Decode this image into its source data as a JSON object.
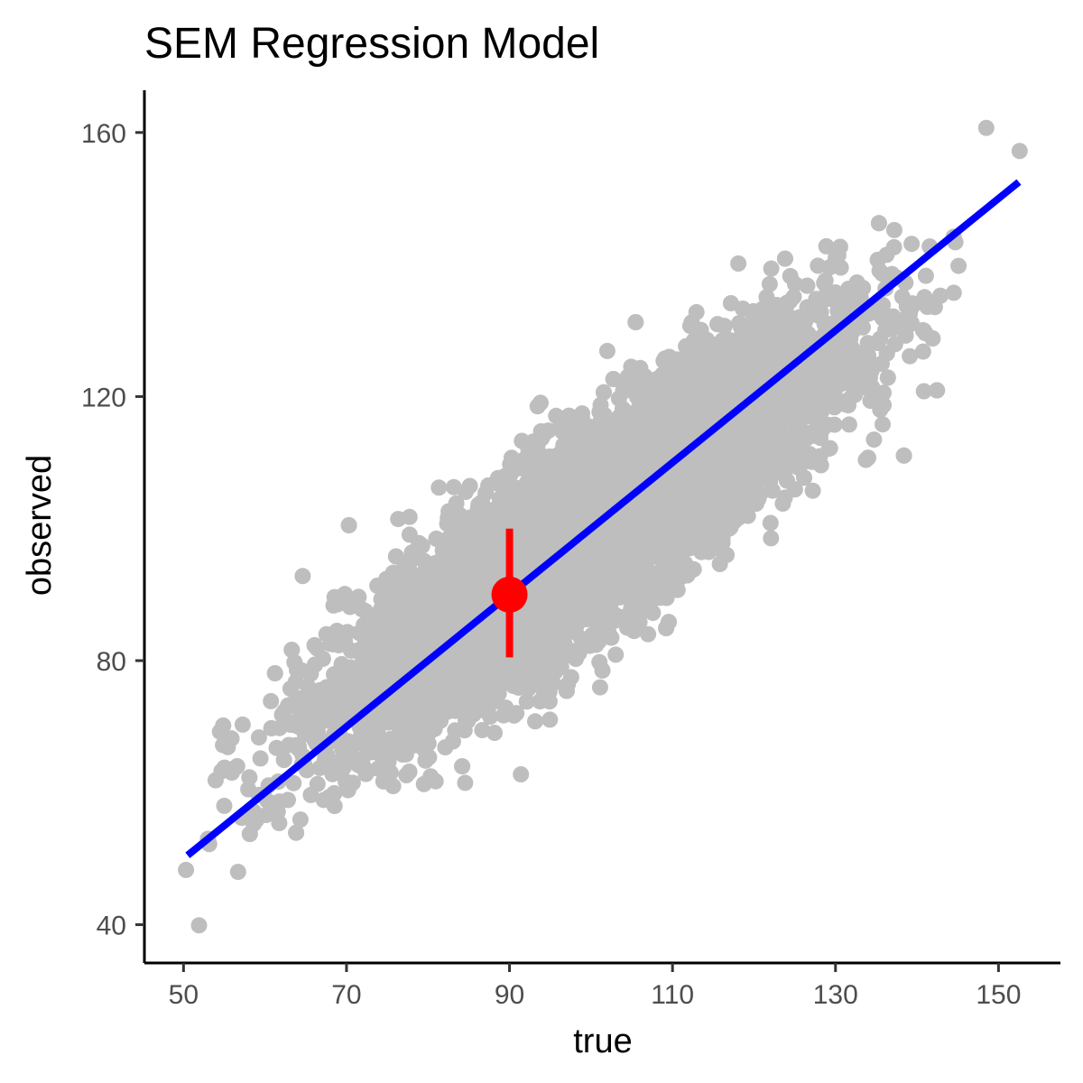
{
  "chart_data": {
    "type": "scatter",
    "title": "SEM Regression Model",
    "xlabel": "true",
    "ylabel": "observed",
    "xlim": [
      45.2,
      157.6
    ],
    "ylim": [
      34.2,
      166.4
    ],
    "x_ticks": [
      50,
      70,
      90,
      110,
      130,
      150
    ],
    "y_ticks": [
      40,
      80,
      120,
      160
    ],
    "grid": false,
    "legend": "none",
    "scatter_cloud": {
      "n_points": 9000,
      "center": [
        100,
        100
      ],
      "sd": 15,
      "correlation": 0.87,
      "color": "#bebebe",
      "outliers": [
        {
          "x": 50.3,
          "y": 48.3
        },
        {
          "x": 51.9,
          "y": 39.9
        },
        {
          "x": 56.7,
          "y": 48.0
        },
        {
          "x": 55.0,
          "y": 58.0
        },
        {
          "x": 53.0,
          "y": 53.0
        },
        {
          "x": 148.5,
          "y": 160.7
        },
        {
          "x": 152.6,
          "y": 157.2
        },
        {
          "x": 144.5,
          "y": 144.2
        },
        {
          "x": 145.1,
          "y": 139.8
        },
        {
          "x": 134.5,
          "y": 124.3
        },
        {
          "x": 102.0,
          "y": 126.9
        },
        {
          "x": 107.0,
          "y": 84.0
        },
        {
          "x": 125.5,
          "y": 109.2
        },
        {
          "x": 82.5,
          "y": 98.5
        }
      ]
    },
    "regression_line": {
      "from": [
        50.5,
        50.5
      ],
      "to": [
        152.5,
        152.5
      ],
      "color": "#0000ff"
    },
    "highlight_point": {
      "x": 90,
      "y": 90,
      "y_low": 80.5,
      "y_high": 100,
      "color": "#ff0000"
    }
  }
}
